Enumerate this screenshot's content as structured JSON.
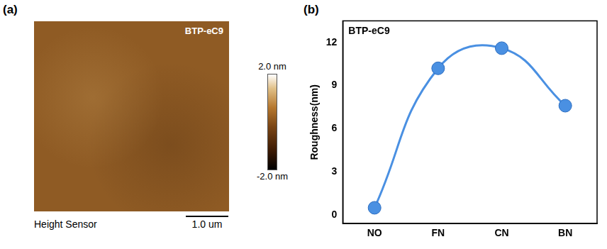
{
  "panel_a": {
    "label": "(a)",
    "title": "BTP-eC9",
    "caption": "Height Sensor",
    "scale_bar": "1.0 um",
    "colorbar": {
      "range": [
        -2.0,
        2.0
      ],
      "ticks": [
        {
          "value": 2.0,
          "label": "2.0 nm"
        },
        {
          "value": -2.0,
          "label": "-2.0 nm"
        }
      ]
    }
  },
  "chart_data": {
    "label": "(b)",
    "type": "line",
    "title": "BTP-eC9",
    "y_label": "Roughness(nm)",
    "categories": [
      "NO",
      "FN",
      "CN",
      "BN"
    ],
    "values": [
      0.5,
      10.2,
      11.6,
      7.6
    ],
    "color": "#4a90e2",
    "marker": "circle",
    "line_style": "smooth",
    "ylim": [
      -0.6,
      13.5
    ],
    "yticks": [
      0,
      3,
      6,
      9,
      12
    ],
    "grid": false
  }
}
